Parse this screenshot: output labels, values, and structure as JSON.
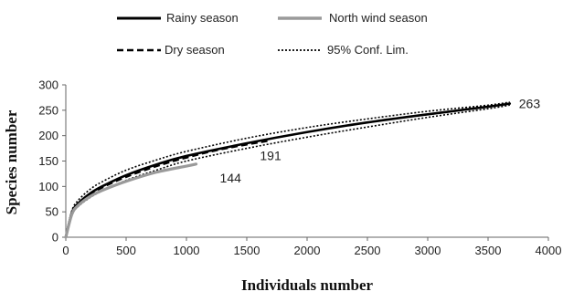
{
  "chart_data": {
    "type": "line",
    "xlabel": "Individuals number",
    "ylabel": "Species number",
    "xlim": [
      0,
      4000
    ],
    "ylim": [
      0,
      300
    ],
    "xticks": [
      0,
      500,
      1000,
      1500,
      2000,
      2500,
      3000,
      3500,
      4000
    ],
    "yticks": [
      0,
      50,
      100,
      150,
      200,
      250,
      300
    ],
    "grid": false,
    "legend_position": "top",
    "legend": [
      {
        "label": "Rainy season",
        "series": "rainy"
      },
      {
        "label": "North wind season",
        "series": "north"
      },
      {
        "label": "Dry season",
        "series": "dry"
      },
      {
        "label": "95% Conf. Lim.",
        "series": "ci"
      }
    ],
    "series": [
      {
        "id": "rainy",
        "name": "Rainy season",
        "color": "#000000",
        "style": "solid",
        "x": [
          0,
          50,
          100,
          200,
          300,
          500,
          750,
          1000,
          1500,
          2000,
          2500,
          3000,
          3500,
          3680
        ],
        "y": [
          0,
          48,
          66,
          86,
          100,
          122,
          143,
          160,
          185,
          207,
          226,
          242,
          257,
          263
        ]
      },
      {
        "id": "north",
        "name": "North wind season",
        "color": "#9a9a9a",
        "style": "solid",
        "x": [
          0,
          50,
          100,
          200,
          300,
          500,
          750,
          1000,
          1080
        ],
        "y": [
          0,
          45,
          62,
          80,
          92,
          110,
          128,
          140,
          144
        ]
      },
      {
        "id": "dry",
        "name": "Dry season",
        "color": "#000000",
        "style": "dashed",
        "x": [
          0,
          50,
          100,
          200,
          300,
          500,
          750,
          1000,
          1300,
          1700
        ],
        "y": [
          0,
          47,
          64,
          84,
          98,
          119,
          140,
          157,
          174,
          191
        ]
      },
      {
        "id": "ci-upper",
        "name": "95% Conf. Lim.",
        "color": "#000000",
        "style": "dotted",
        "x": [
          0,
          50,
          100,
          200,
          300,
          500,
          750,
          1000,
          1500,
          2000,
          2500,
          3000,
          3500,
          3680
        ],
        "y": [
          0,
          52,
          72,
          94,
          109,
          132,
          152,
          169,
          195,
          216,
          233,
          248,
          260,
          266
        ]
      },
      {
        "id": "ci-lower",
        "name": "95% Conf. Lim.",
        "color": "#000000",
        "style": "dotted",
        "x": [
          0,
          50,
          100,
          200,
          300,
          500,
          750,
          1000,
          1500,
          2000,
          2500,
          3000,
          3500,
          3680
        ],
        "y": [
          0,
          44,
          60,
          78,
          91,
          112,
          132,
          150,
          175,
          197,
          217,
          236,
          253,
          260
        ]
      }
    ],
    "annotations": [
      {
        "text": "263",
        "x": 3680,
        "y": 263
      },
      {
        "text": "191",
        "x": 1700,
        "y": 191
      },
      {
        "text": "144",
        "x": 1080,
        "y": 144
      }
    ]
  }
}
